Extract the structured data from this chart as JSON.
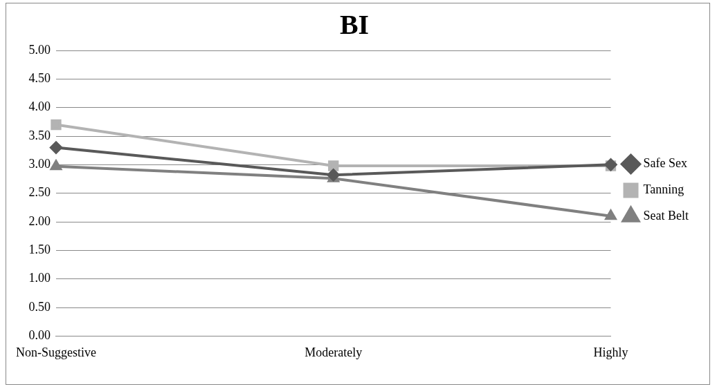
{
  "chart_data": {
    "type": "line",
    "title": "BI",
    "categories": [
      "Non-Suggestive",
      "Moderately",
      "Highly"
    ],
    "series": [
      {
        "name": "Safe Sex",
        "color": "#595959",
        "marker": "diamond",
        "values": [
          3.3,
          2.82,
          3.0
        ]
      },
      {
        "name": "Tanning",
        "color": "#b3b3b3",
        "marker": "square",
        "values": [
          3.7,
          2.98,
          2.98
        ]
      },
      {
        "name": "Seat Belt",
        "color": "#808080",
        "marker": "triangle",
        "values": [
          2.97,
          2.76,
          2.1
        ]
      }
    ],
    "ylim": [
      0,
      5
    ],
    "yticks": [
      {
        "value": 0,
        "label": "0.00"
      },
      {
        "value": 0.5,
        "label": "0.50"
      },
      {
        "value": 1,
        "label": "1.00"
      },
      {
        "value": 1.5,
        "label": "1.50"
      },
      {
        "value": 2,
        "label": "2.00"
      },
      {
        "value": 2.5,
        "label": "2.50"
      },
      {
        "value": 3,
        "label": "3.00"
      },
      {
        "value": 3.5,
        "label": "3.50"
      },
      {
        "value": 4,
        "label": "4.00"
      },
      {
        "value": 4.5,
        "label": "4.50"
      },
      {
        "value": 5,
        "label": "5.00"
      }
    ],
    "grid": "y",
    "legend": "right"
  }
}
